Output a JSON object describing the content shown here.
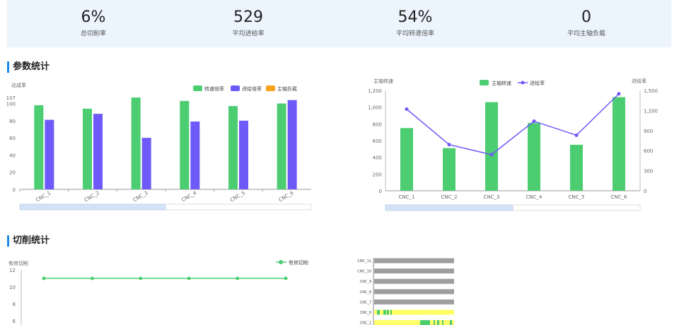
{
  "kpis": [
    {
      "value": "6%",
      "label": "总切削率"
    },
    {
      "value": "529",
      "label": "平均进给率"
    },
    {
      "value": "54%",
      "label": "平均转速倍率"
    },
    {
      "value": "0",
      "label": "平均主轴负载"
    }
  ],
  "sections": {
    "params": "参数统计",
    "cutting": "切削统计"
  },
  "colors": {
    "green": "#4ccd72",
    "purple": "#6e5af8",
    "orange": "#f5a31a",
    "gray": "#9e9e9e",
    "yellow": "#ffff66",
    "accent": "#1e88e5"
  },
  "chart_data": [
    {
      "type": "bar",
      "ylabel": "达成率",
      "ylim": [
        0,
        107
      ],
      "yticks": [
        0,
        20,
        40,
        60,
        80,
        100,
        107
      ],
      "categories": [
        "CNC_1",
        "CNC_2",
        "CNC_3",
        "CNC_4",
        "CNC_5",
        "CNC_6"
      ],
      "series": [
        {
          "name": "转速倍率",
          "values": [
            98,
            94,
            107,
            103,
            97,
            100
          ]
        },
        {
          "name": "进给倍率",
          "values": [
            81,
            88,
            60,
            79,
            80,
            104
          ]
        },
        {
          "name": "主轴负载",
          "values": [
            0,
            0,
            0,
            0,
            0,
            0
          ]
        }
      ],
      "legend": "top-right",
      "datazoom": true
    },
    {
      "type": "bar",
      "ylabel": "主轴转速",
      "y2label": "进给率",
      "ylim": [
        0,
        1200
      ],
      "yticks": [
        "0",
        "200",
        "400",
        "600",
        "800",
        "1,000",
        "1,200"
      ],
      "y2lim": [
        0,
        1500
      ],
      "y2ticks": [
        "0",
        "300",
        "600",
        "900",
        "1,200",
        "1,500"
      ],
      "categories": [
        "CNC_1",
        "CNC_2",
        "CNC_3",
        "CNC_4",
        "CNC_5",
        "CNC_6"
      ],
      "series": [
        {
          "name": "主轴转速",
          "kind": "bar",
          "values": [
            750,
            510,
            1060,
            810,
            550,
            1120
          ]
        },
        {
          "name": "进给率",
          "kind": "line",
          "axis": "right",
          "values": [
            1220,
            690,
            540,
            1040,
            830,
            1450
          ]
        }
      ],
      "legend": "top-center",
      "datazoom": true
    },
    {
      "type": "line",
      "ylabel": "有效切削",
      "ylim": [
        6,
        12
      ],
      "yticks": [
        6,
        8,
        10,
        12
      ],
      "series": [
        {
          "name": "有效切削",
          "values": [
            11,
            11,
            11,
            11,
            11,
            11
          ]
        }
      ],
      "legend": "top-right"
    },
    {
      "type": "bar",
      "orientation": "horizontal",
      "categories": [
        "CNC_11",
        "CNC_10",
        "CNC_9",
        "CNC_8",
        "CNC_7",
        "CNC_6",
        "CNC_1"
      ]
    }
  ]
}
